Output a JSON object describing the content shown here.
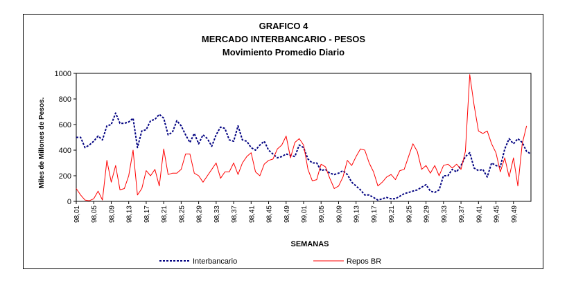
{
  "chart_data": {
    "type": "line",
    "title": "GRAFICO 4",
    "subtitle_1": "MERCADO INTERBANCARIO  - PESOS",
    "subtitle_2": "Movimiento Promedio Diario",
    "xlabel": "SEMANAS",
    "ylabel": "Miles de Millones de Pesos.",
    "ylim": [
      0,
      1000
    ],
    "yticks": [
      "0",
      "200",
      "400",
      "600",
      "800",
      "1000"
    ],
    "xticks": [
      "98,01",
      "98,05",
      "98,09",
      "98,13",
      "98,17",
      "98,21",
      "98,25",
      "98,29",
      "98,33",
      "98,37",
      "98,41",
      "98,45",
      "98,49",
      "99,01",
      "99,05",
      "99,09",
      "99,13",
      "99,17",
      "99,21",
      "99,25",
      "99,29",
      "99,33",
      "99,37",
      "99,41",
      "99,45",
      "99,49"
    ],
    "grid": false,
    "legend_position": "bottom",
    "series": [
      {
        "name": "Interbancario",
        "color": "#000080",
        "style": "dotted",
        "values": [
          500,
          500,
          420,
          440,
          470,
          510,
          480,
          590,
          600,
          690,
          610,
          610,
          620,
          650,
          420,
          550,
          560,
          630,
          640,
          680,
          650,
          520,
          540,
          630,
          590,
          520,
          460,
          530,
          450,
          520,
          490,
          430,
          520,
          580,
          570,
          480,
          470,
          590,
          480,
          470,
          420,
          400,
          440,
          470,
          400,
          370,
          340,
          350,
          370,
          360,
          350,
          440,
          420,
          330,
          300,
          300,
          240,
          250,
          220,
          210,
          220,
          240,
          210,
          150,
          120,
          90,
          50,
          50,
          30,
          10,
          20,
          30,
          20,
          20,
          40,
          60,
          70,
          80,
          90,
          110,
          130,
          80,
          70,
          90,
          200,
          200,
          250,
          230,
          280,
          350,
          380,
          260,
          240,
          250,
          190,
          300,
          280,
          270,
          410,
          490,
          450,
          490,
          460,
          390,
          370
        ]
      },
      {
        "name": "Repos BR",
        "color": "#ff0000",
        "style": "solid",
        "values": [
          100,
          50,
          10,
          5,
          20,
          80,
          10,
          320,
          150,
          280,
          90,
          100,
          200,
          400,
          50,
          100,
          240,
          200,
          250,
          120,
          410,
          210,
          220,
          220,
          250,
          370,
          370,
          220,
          200,
          150,
          200,
          250,
          300,
          180,
          230,
          230,
          300,
          210,
          300,
          350,
          380,
          230,
          200,
          290,
          320,
          330,
          410,
          440,
          510,
          340,
          460,
          490,
          440,
          250,
          160,
          170,
          290,
          270,
          180,
          100,
          120,
          190,
          320,
          280,
          350,
          410,
          400,
          300,
          230,
          120,
          150,
          190,
          210,
          170,
          240,
          250,
          350,
          450,
          390,
          250,
          280,
          220,
          280,
          200,
          280,
          290,
          260,
          290,
          250,
          390,
          990,
          750,
          550,
          530,
          550,
          450,
          380,
          230,
          340,
          190,
          340,
          120,
          450,
          590
        ]
      }
    ]
  }
}
